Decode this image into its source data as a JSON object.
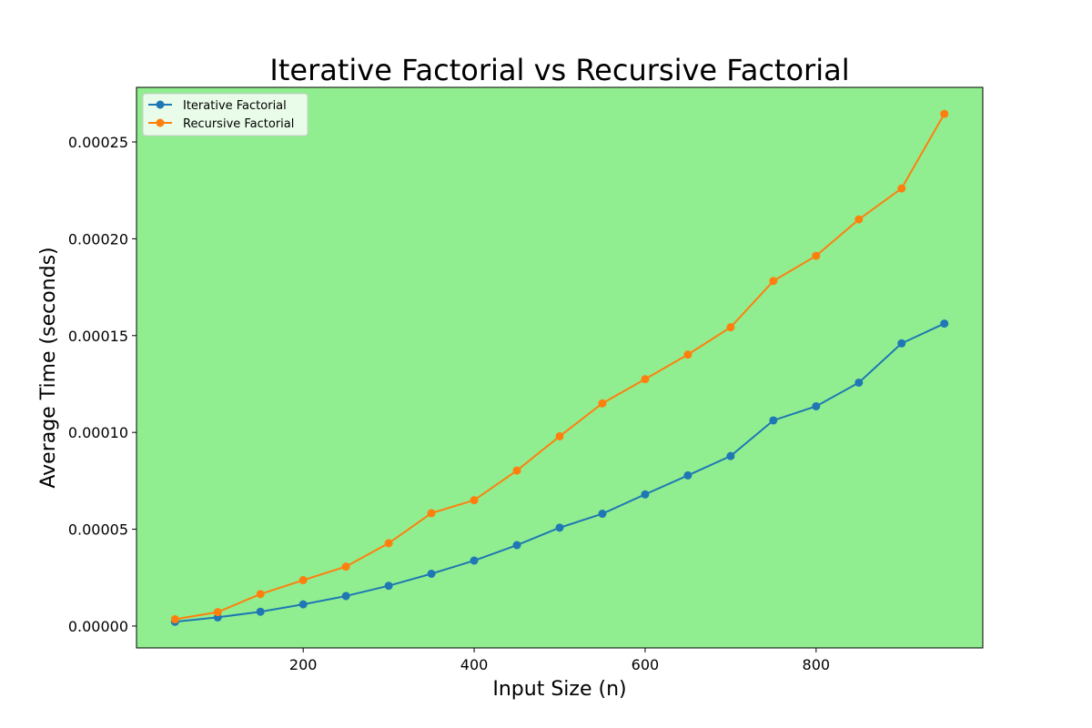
{
  "chart_data": {
    "type": "line",
    "title": "Iterative Factorial vs Recursive Factorial",
    "xlabel": "Input Size (n)",
    "ylabel": "Average Time (seconds)",
    "xlim": [
      5,
      995
    ],
    "ylim": [
      -1.13e-05,
      0.0002782
    ],
    "xticks": [
      200,
      400,
      600,
      800
    ],
    "yticks": [
      0.0,
      5e-05,
      0.0001,
      0.00015,
      0.0002,
      0.00025
    ],
    "ytick_labels": [
      "0.00000",
      "0.00005",
      "0.00010",
      "0.00015",
      "0.00020",
      "0.00025"
    ],
    "grid": false,
    "legend_position": "top-left",
    "plot_background": "#90EE90",
    "x": [
      50,
      100,
      150,
      200,
      250,
      300,
      350,
      400,
      450,
      500,
      550,
      600,
      650,
      700,
      750,
      800,
      850,
      900,
      950
    ],
    "series": [
      {
        "name": "Iterative Factorial",
        "color": "#1f77b4",
        "values": [
          2.2e-06,
          4.5e-06,
          7.4e-06,
          1.12e-05,
          1.55e-05,
          2.08e-05,
          2.7e-05,
          3.38e-05,
          4.18e-05,
          5.08e-05,
          5.8e-05,
          6.8e-05,
          7.78e-05,
          8.78e-05,
          0.0001062,
          0.0001135,
          0.0001257,
          0.000146,
          0.0001562
        ]
      },
      {
        "name": "Recursive Factorial",
        "color": "#ff7f0e",
        "values": [
          3.5e-06,
          7.2e-06,
          1.65e-05,
          2.37e-05,
          3.07e-05,
          4.28e-05,
          5.83e-05,
          6.5e-05,
          8.03e-05,
          9.8e-05,
          0.000115,
          0.0001275,
          0.0001402,
          0.0001543,
          0.0001782,
          0.0001912,
          0.00021,
          0.000226,
          0.0002645
        ]
      }
    ]
  }
}
